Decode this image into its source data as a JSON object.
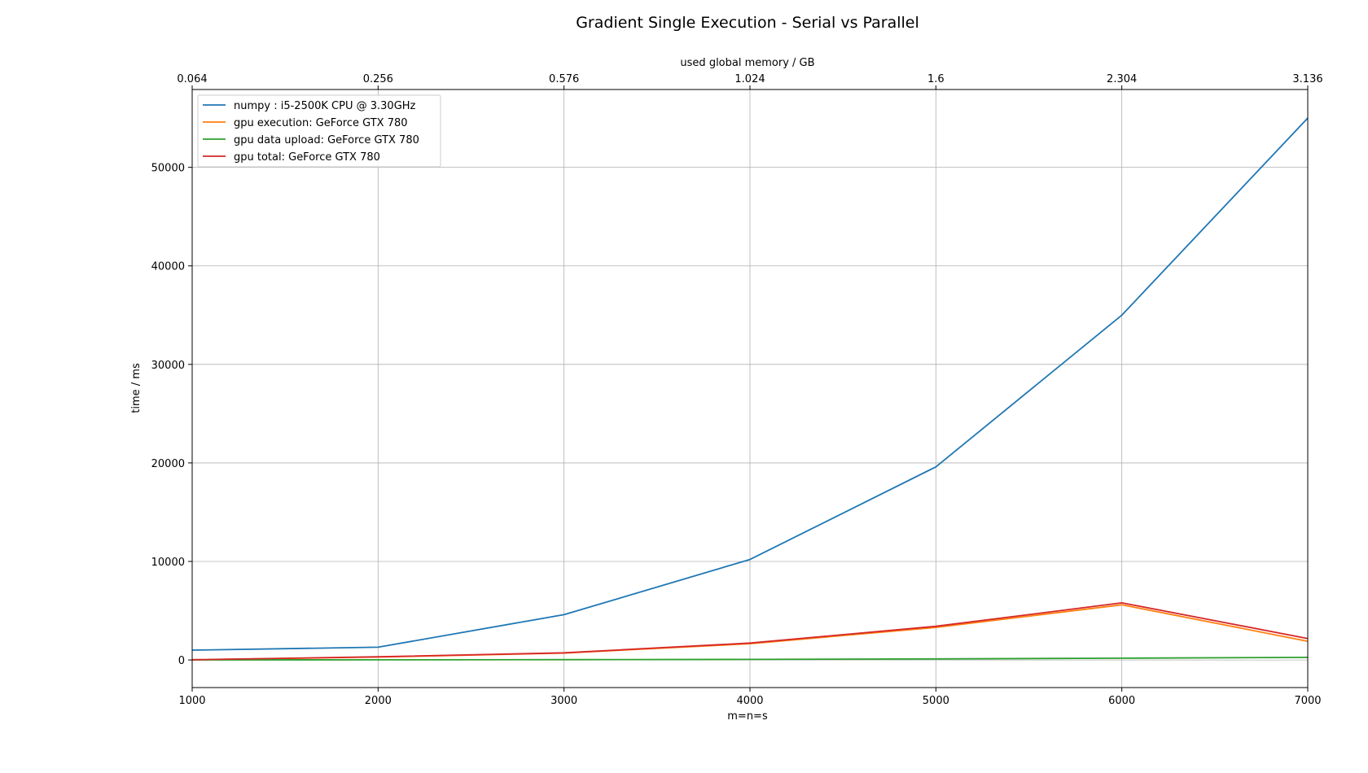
{
  "chart_data": {
    "type": "line",
    "title": "Gradient Single Execution - Serial vs Parallel",
    "xlabel": "m=n=s",
    "ylabel": "time / ms",
    "xlabel_top": "used global memory / GB",
    "x": [
      1000,
      2000,
      3000,
      4000,
      5000,
      6000,
      7000
    ],
    "xlim": [
      1000,
      7000
    ],
    "ylim": [
      -2800,
      57900
    ],
    "x_ticks": [
      "1000",
      "2000",
      "3000",
      "4000",
      "5000",
      "6000",
      "7000"
    ],
    "x_top_ticks": [
      "0.064",
      "0.256",
      "0.576",
      "1.024",
      "1.6",
      "2.304",
      "3.136"
    ],
    "y_ticks": [
      0,
      10000,
      20000,
      30000,
      40000,
      50000
    ],
    "y_tick_labels": [
      "0",
      "10000",
      "20000",
      "30000",
      "40000",
      "50000"
    ],
    "grid": true,
    "legend_position": "top-left",
    "series": [
      {
        "name": "numpy : i5-2500K CPU @ 3.30GHz",
        "color": "#1f77b4",
        "values": [
          1000,
          1300,
          4600,
          10200,
          19600,
          35000,
          55000
        ]
      },
      {
        "name": "gpu execution: GeForce GTX 780",
        "color": "#ff7f0e",
        "values": [
          20,
          300,
          700,
          1650,
          3300,
          5600,
          1900
        ]
      },
      {
        "name": "gpu data upload: GeForce GTX 780",
        "color": "#2ca02c",
        "values": [
          5,
          15,
          30,
          60,
          110,
          180,
          260
        ]
      },
      {
        "name": "gpu total: GeForce GTX 780",
        "color": "#d62728",
        "values": [
          25,
          320,
          730,
          1720,
          3420,
          5800,
          2180
        ]
      }
    ]
  }
}
